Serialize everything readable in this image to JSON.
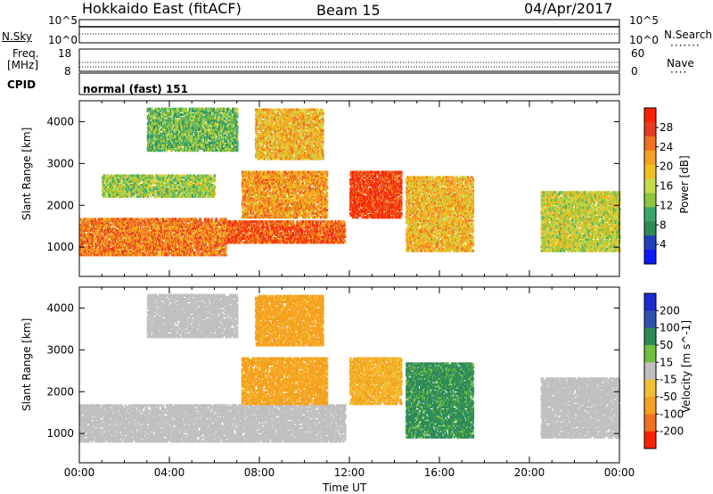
{
  "header": {
    "radar": "Hokkaido East (fitACF)",
    "beam": "Beam 15",
    "date": "04/Apr/2017"
  },
  "nsky_panel": {
    "left_label": "N.Sky",
    "left_ticks": [
      "10^5",
      "10^0"
    ],
    "right_ticks": [
      "10^5",
      "10^0"
    ],
    "right_label": "N.Search"
  },
  "freq_panel": {
    "left_label_line1": "Freq.",
    "left_label_line2": "[MHz]",
    "left_ticks": [
      "18",
      "8"
    ],
    "right_ticks": [
      "60",
      "0"
    ],
    "right_label": "Nave"
  },
  "cpid_panel": {
    "label": "CPID",
    "text": "normal (fast) 151"
  },
  "colors": {
    "power": [
      "#0a1aff",
      "#2040c0",
      "#2e8b57",
      "#3aa66a",
      "#8dc63f",
      "#c8d94a",
      "#f0c020",
      "#f5a020",
      "#f07020",
      "#e83a1c",
      "#ff2000"
    ],
    "velocity_pos": [
      "#1a2cd0",
      "#3050b0",
      "#2e8b57",
      "#70c040"
    ],
    "velocity_neutral": "#c0c0c0",
    "velocity_neg": [
      "#f0c030",
      "#f5a020",
      "#f07020",
      "#ff2000"
    ]
  },
  "chart_data": [
    {
      "type": "heatmap",
      "name": "power",
      "ylabel": "Slant Range [km]",
      "yticks": [
        "1000",
        "2000",
        "3000",
        "4000"
      ],
      "ylim": [
        300,
        4500
      ],
      "xlim": [
        0,
        24
      ],
      "colorbar_label": "Power [dB]",
      "colorbar_ticks": [
        "4",
        "8",
        "12",
        "16",
        "20",
        "24",
        "28"
      ],
      "clim": [
        0,
        32
      ],
      "regions": [
        {
          "t0": 0.0,
          "t1": 6.5,
          "r0": 800,
          "r1": 1700,
          "value": 24
        },
        {
          "t0": 6.5,
          "t1": 11.8,
          "r0": 1100,
          "r1": 1600,
          "value": 26
        },
        {
          "t0": 7.2,
          "t1": 11.0,
          "r0": 1700,
          "r1": 2800,
          "value": 22
        },
        {
          "t0": 7.8,
          "t1": 10.8,
          "r0": 3100,
          "r1": 4300,
          "value": 20
        },
        {
          "t0": 3.0,
          "t1": 7.0,
          "r0": 3300,
          "r1": 4300,
          "value": 12
        },
        {
          "t0": 1.0,
          "t1": 6.0,
          "r0": 2200,
          "r1": 2700,
          "value": 14
        },
        {
          "t0": 12.0,
          "t1": 14.3,
          "r0": 1700,
          "r1": 2800,
          "value": 28
        },
        {
          "t0": 14.5,
          "t1": 17.5,
          "r0": 900,
          "r1": 2700,
          "value": 20
        },
        {
          "t0": 20.5,
          "t1": 24.0,
          "r0": 900,
          "r1": 2300,
          "value": 16
        }
      ]
    },
    {
      "type": "heatmap",
      "name": "velocity",
      "ylabel": "Slant Range [km]",
      "yticks": [
        "1000",
        "2000",
        "3000",
        "4000"
      ],
      "ylim": [
        300,
        4500
      ],
      "xlim": [
        0,
        24
      ],
      "xticks": [
        "00:00",
        "04:00",
        "08:00",
        "12:00",
        "16:00",
        "20:00",
        "00:00"
      ],
      "xlabel": "Time UT",
      "colorbar_label": "Velocity [m s^-1]",
      "colorbar_ticks": [
        "200",
        "100",
        "50",
        "15",
        "-15",
        "-50",
        "-100",
        "-200"
      ],
      "clim": [
        -250,
        250
      ],
      "regions": [
        {
          "t0": 0.0,
          "t1": 11.8,
          "r0": 800,
          "r1": 1700,
          "value": 0
        },
        {
          "t0": 7.2,
          "t1": 11.0,
          "r0": 1700,
          "r1": 2800,
          "value": -40
        },
        {
          "t0": 7.8,
          "t1": 10.8,
          "r0": 3100,
          "r1": 4300,
          "value": -40
        },
        {
          "t0": 3.0,
          "t1": 7.0,
          "r0": 3300,
          "r1": 4300,
          "value": 0
        },
        {
          "t0": 12.0,
          "t1": 14.3,
          "r0": 1700,
          "r1": 2800,
          "value": -30
        },
        {
          "t0": 14.5,
          "t1": 17.5,
          "r0": 900,
          "r1": 2700,
          "value": 40
        },
        {
          "t0": 20.5,
          "t1": 24.0,
          "r0": 900,
          "r1": 2300,
          "value": 0
        }
      ]
    }
  ]
}
